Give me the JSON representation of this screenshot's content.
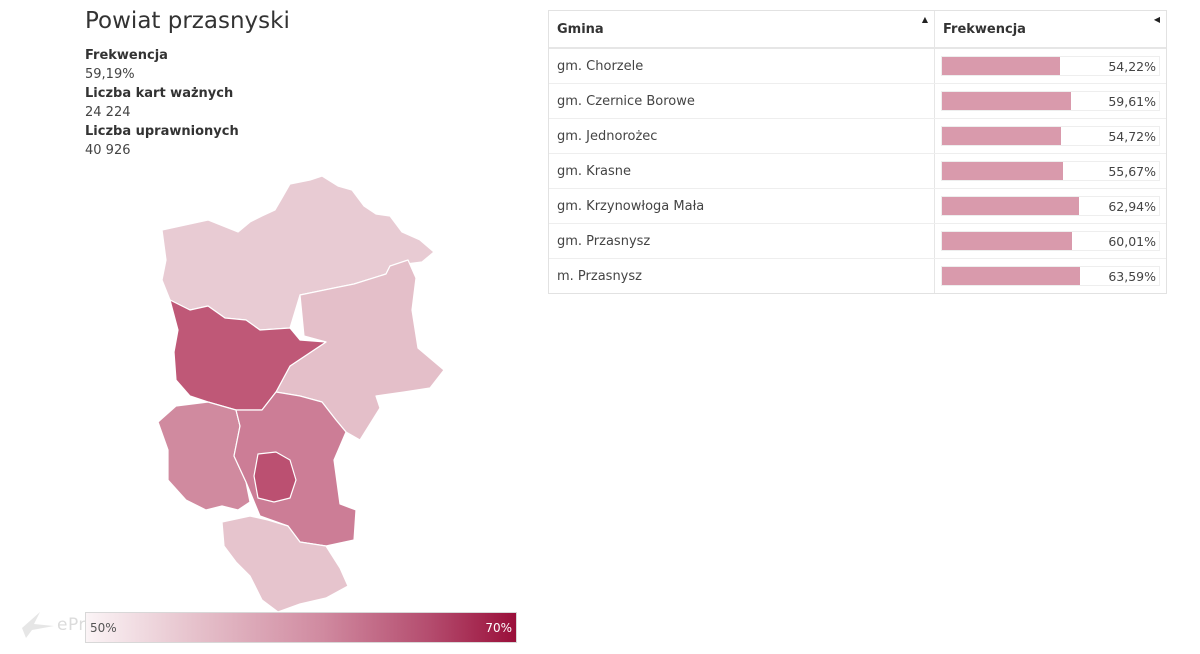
{
  "title": "Powiat przasnyski",
  "stats": [
    {
      "label": "Frekwencja",
      "value": "59,19%"
    },
    {
      "label": "Liczba kart ważnych",
      "value": "24 224"
    },
    {
      "label": "Liczba uprawnionych",
      "value": "40 926"
    }
  ],
  "legend": {
    "min_label": "50%",
    "max_label": "70%",
    "min_value": 50,
    "max_value": 70
  },
  "logo_text": "ePrzasnysz",
  "table": {
    "headers": {
      "gmina": "Gmina",
      "frekwencja": "Frekwencja"
    },
    "rows": [
      {
        "name": "gm. Chorzele",
        "turnout_label": "54,22%",
        "turnout": 54.22
      },
      {
        "name": "gm. Czernice Borowe",
        "turnout_label": "59,61%",
        "turnout": 59.61
      },
      {
        "name": "gm. Jednorożec",
        "turnout_label": "54,72%",
        "turnout": 54.72
      },
      {
        "name": "gm. Krasne",
        "turnout_label": "55,67%",
        "turnout": 55.67
      },
      {
        "name": "gm. Krzynowłoga Mała",
        "turnout_label": "62,94%",
        "turnout": 62.94
      },
      {
        "name": "gm. Przasnysz",
        "turnout_label": "60,01%",
        "turnout": 60.01
      },
      {
        "name": "m. Przasnysz",
        "turnout_label": "63,59%",
        "turnout": 63.59
      }
    ]
  },
  "colors": {
    "chorzele": "#e8cbd3",
    "jednorozec": "#e4bfc9",
    "krzynowloga": "#bf5877",
    "krasne": "#d08a9f",
    "gm_przasnysz": "#cc7d96",
    "m_przasnysz": "#bb5071",
    "czernice": "#e6c4cd",
    "bar_fill": "#d99aac"
  }
}
